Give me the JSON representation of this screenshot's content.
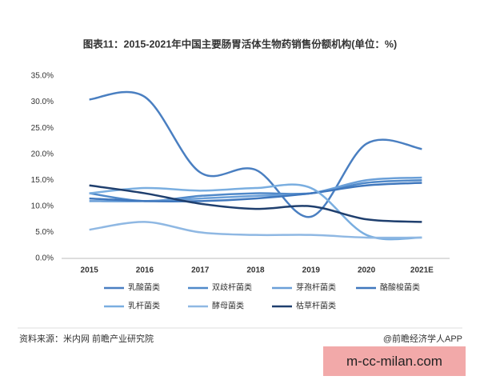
{
  "chart_data": {
    "type": "line",
    "title": "图表11：2015-2021年中国主要肠胃活体生物药销售份额机构(单位：%)",
    "categories": [
      "2015",
      "2016",
      "2017",
      "2018",
      "2019",
      "2020",
      "2021E"
    ],
    "series": [
      {
        "name": "乳酸菌类",
        "color": "#4a7fc1",
        "values": [
          30.5,
          31,
          16.5,
          17,
          8,
          22,
          21
        ]
      },
      {
        "name": "双歧杆菌类",
        "color": "#5089c9",
        "values": [
          12.5,
          11,
          12,
          12.5,
          12.5,
          14.5,
          15
        ]
      },
      {
        "name": "芽孢杆菌类",
        "color": "#6a9fd8",
        "values": [
          11,
          11,
          11.5,
          12,
          12.5,
          15,
          15.5
        ]
      },
      {
        "name": "酪酸梭菌类",
        "color": "#3f77bd",
        "values": [
          11.5,
          11,
          11,
          11.5,
          12.5,
          14,
          14.5
        ]
      },
      {
        "name": "乳杆菌类",
        "color": "#7aaee0",
        "values": [
          12.5,
          13.5,
          13,
          13.5,
          13.5,
          4.5,
          4
        ]
      },
      {
        "name": "酵母菌类",
        "color": "#8fb8e3",
        "values": [
          5.5,
          7,
          5,
          4.5,
          4.5,
          4,
          4
        ]
      },
      {
        "name": "枯草杆菌类",
        "color": "#1f3f6e",
        "values": [
          14,
          12.5,
          10.5,
          9.5,
          10,
          7.5,
          7
        ]
      }
    ],
    "ylim": [
      0,
      35
    ],
    "yticks": [
      {
        "value": 0,
        "label": "0.0%"
      },
      {
        "value": 5,
        "label": "5.0%"
      },
      {
        "value": 10,
        "label": "10.0%"
      },
      {
        "value": 15,
        "label": "15.0%"
      },
      {
        "value": 20,
        "label": "20.0%"
      },
      {
        "value": 25,
        "label": "25.0%"
      },
      {
        "value": 30,
        "label": "30.0%"
      },
      {
        "value": 35,
        "label": "35.0%"
      }
    ],
    "grid": false
  },
  "source": "资料来源：米内网 前瞻产业研究院",
  "credit": "@前瞻经济学人APP",
  "watermark": "m-cc-milan.com"
}
